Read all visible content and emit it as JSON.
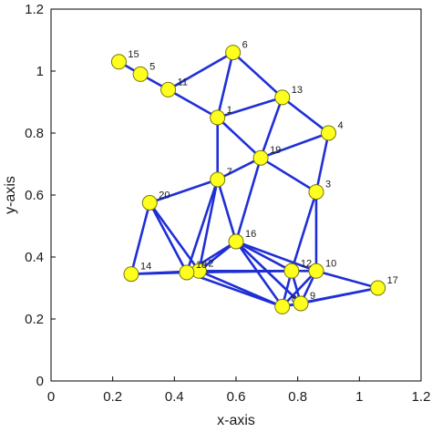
{
  "chart_data": {
    "type": "scatter",
    "title": "",
    "xlabel": "x-axis",
    "ylabel": "y-axis",
    "xlim": [
      0,
      1.2
    ],
    "ylim": [
      0,
      1.2
    ],
    "xticks": [
      "0",
      "0.2",
      "0.4",
      "0.6",
      "0.8",
      "1",
      "1.2"
    ],
    "yticks": [
      "0",
      "0.2",
      "0.4",
      "0.6",
      "0.8",
      "1",
      "1.2"
    ],
    "grid": false,
    "legend": "none",
    "colors": {
      "edge": "#1f2fd6",
      "node_fill": "#ffff1f",
      "node_stroke": "#777700",
      "axis": "#000000"
    },
    "nodes": [
      {
        "id": "1",
        "label": "1",
        "x": 0.54,
        "y": 0.85
      },
      {
        "id": "2",
        "label": "2",
        "x": 0.48,
        "y": 0.355
      },
      {
        "id": "3",
        "label": "3",
        "x": 0.86,
        "y": 0.61
      },
      {
        "id": "4",
        "label": "4",
        "x": 0.9,
        "y": 0.8
      },
      {
        "id": "5",
        "label": "5",
        "x": 0.29,
        "y": 0.99
      },
      {
        "id": "6",
        "label": "6",
        "x": 0.59,
        "y": 1.06
      },
      {
        "id": "7",
        "label": "7",
        "x": 0.54,
        "y": 0.65
      },
      {
        "id": "8",
        "label": "8",
        "x": 0.75,
        "y": 0.24
      },
      {
        "id": "9",
        "label": "9",
        "x": 0.81,
        "y": 0.25
      },
      {
        "id": "10",
        "label": "10",
        "x": 0.86,
        "y": 0.355
      },
      {
        "id": "11",
        "label": "11",
        "x": 0.38,
        "y": 0.94
      },
      {
        "id": "12",
        "label": "12",
        "x": 0.78,
        "y": 0.355
      },
      {
        "id": "13",
        "label": "13",
        "x": 0.75,
        "y": 0.915
      },
      {
        "id": "14",
        "label": "14",
        "x": 0.26,
        "y": 0.345
      },
      {
        "id": "15",
        "label": "15",
        "x": 0.22,
        "y": 1.03
      },
      {
        "id": "16",
        "label": "16",
        "x": 0.6,
        "y": 0.45
      },
      {
        "id": "17",
        "label": "17",
        "x": 1.06,
        "y": 0.3
      },
      {
        "id": "18",
        "label": "18",
        "x": 0.44,
        "y": 0.35
      },
      {
        "id": "19",
        "label": "19",
        "x": 0.68,
        "y": 0.72
      },
      {
        "id": "20",
        "label": "20",
        "x": 0.32,
        "y": 0.575
      }
    ],
    "edges": [
      [
        "15",
        "5"
      ],
      [
        "5",
        "11"
      ],
      [
        "11",
        "1"
      ],
      [
        "11",
        "6"
      ],
      [
        "6",
        "1"
      ],
      [
        "6",
        "13"
      ],
      [
        "1",
        "13"
      ],
      [
        "1",
        "7"
      ],
      [
        "1",
        "19"
      ],
      [
        "13",
        "19"
      ],
      [
        "13",
        "4"
      ],
      [
        "4",
        "19"
      ],
      [
        "4",
        "3"
      ],
      [
        "19",
        "7"
      ],
      [
        "19",
        "3"
      ],
      [
        "19",
        "16"
      ],
      [
        "7",
        "20"
      ],
      [
        "7",
        "16"
      ],
      [
        "7",
        "18"
      ],
      [
        "7",
        "2"
      ],
      [
        "20",
        "14"
      ],
      [
        "20",
        "18"
      ],
      [
        "20",
        "2"
      ],
      [
        "14",
        "18"
      ],
      [
        "14",
        "2"
      ],
      [
        "18",
        "2"
      ],
      [
        "18",
        "16"
      ],
      [
        "18",
        "8"
      ],
      [
        "18",
        "12"
      ],
      [
        "2",
        "16"
      ],
      [
        "2",
        "8"
      ],
      [
        "2",
        "12"
      ],
      [
        "16",
        "12"
      ],
      [
        "16",
        "10"
      ],
      [
        "16",
        "8"
      ],
      [
        "16",
        "9"
      ],
      [
        "3",
        "12"
      ],
      [
        "3",
        "10"
      ],
      [
        "12",
        "10"
      ],
      [
        "12",
        "8"
      ],
      [
        "12",
        "9"
      ],
      [
        "10",
        "9"
      ],
      [
        "10",
        "17"
      ],
      [
        "10",
        "8"
      ],
      [
        "8",
        "17"
      ],
      [
        "9",
        "17"
      ],
      [
        "8",
        "9"
      ]
    ]
  }
}
